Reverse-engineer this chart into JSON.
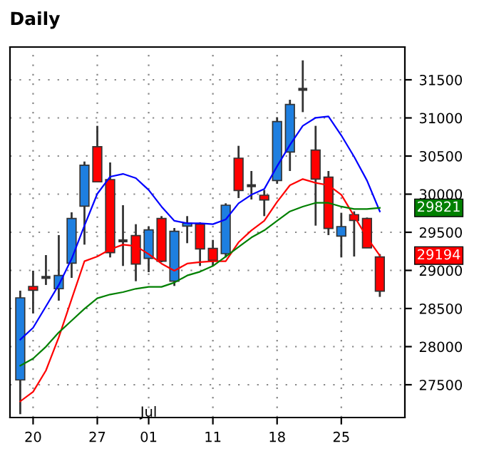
{
  "chart_data": {
    "type": "candlestick",
    "title": "Daily",
    "categories": [
      null,
      "20",
      null,
      null,
      null,
      null,
      "27",
      null,
      null,
      null,
      "01",
      null,
      null,
      null,
      null,
      "11",
      null,
      null,
      null,
      null,
      "18",
      null,
      null,
      null,
      null,
      "25",
      null,
      null,
      null
    ],
    "ohlc": [
      [
        27563,
        28734,
        27114,
        28640
      ],
      [
        28790,
        28996,
        28435,
        28740
      ],
      [
        28908,
        29201,
        28809,
        28908
      ],
      [
        28759,
        29463,
        28603,
        28933
      ],
      [
        29095,
        29762,
        28902,
        29681
      ],
      [
        29843,
        30428,
        29338,
        30379
      ],
      [
        30622,
        30896,
        30161,
        30161
      ],
      [
        30192,
        30416,
        29170,
        29232
      ],
      [
        29388,
        29855,
        29058,
        29388
      ],
      [
        29457,
        29606,
        28858,
        29083
      ],
      [
        29157,
        29575,
        28977,
        29531
      ],
      [
        29681,
        29712,
        29108,
        29120
      ],
      [
        28858,
        29556,
        28796,
        29513
      ],
      [
        29581,
        29712,
        29357,
        29619
      ],
      [
        29606,
        29631,
        29058,
        29282
      ],
      [
        29288,
        29400,
        29058,
        29133
      ],
      [
        29220,
        29880,
        29170,
        29855
      ],
      [
        30472,
        30634,
        29949,
        30048
      ],
      [
        30111,
        30304,
        29930,
        30111
      ],
      [
        29986,
        30055,
        29712,
        29924
      ],
      [
        30179,
        31008,
        30136,
        30952
      ],
      [
        30553,
        31238,
        30304,
        31176
      ],
      [
        31375,
        31755,
        31076,
        31375
      ],
      [
        30578,
        30896,
        29587,
        30198
      ],
      [
        30223,
        30304,
        29463,
        29550
      ],
      [
        29450,
        29756,
        29170,
        29575
      ],
      [
        29731,
        29774,
        29182,
        29656
      ],
      [
        29681,
        29693,
        29295,
        29295
      ],
      [
        29176,
        29214,
        28653,
        28728
      ]
    ],
    "colors": [
      "#1e7fe0",
      "#ff0000",
      "#333333",
      "#1e7fe0",
      "#1e7fe0",
      "#1e7fe0",
      "#ff0000",
      "#ff0000",
      "#333333",
      "#ff0000",
      "#1e7fe0",
      "#ff0000",
      "#1e7fe0",
      "#1e7fe0",
      "#ff0000",
      "#ff0000",
      "#1e7fe0",
      "#ff0000",
      "#333333",
      "#ff0000",
      "#1e7fe0",
      "#1e7fe0",
      "#333333",
      "#ff0000",
      "#ff0000",
      "#1e7fe0",
      "#ff0000",
      "#ff0000",
      "#ff0000"
    ],
    "series": [
      {
        "type": "line",
        "color": "#0000ff",
        "values": [
          28092,
          28248,
          28528,
          28809,
          29151,
          29587,
          30005,
          30229,
          30266,
          30210,
          30055,
          29837,
          29650,
          29619,
          29619,
          29606,
          29668,
          29880,
          29992,
          30067,
          30366,
          30646,
          30896,
          31002,
          31020,
          30771,
          30491,
          30179,
          29774
        ]
      },
      {
        "type": "line",
        "color": "#ff0000",
        "values": [
          27282,
          27407,
          27687,
          28123,
          28622,
          29120,
          29182,
          29276,
          29338,
          29319,
          29214,
          29089,
          28996,
          29089,
          29108,
          29120,
          29120,
          29369,
          29525,
          29650,
          29899,
          30117,
          30198,
          30148,
          30117,
          29992,
          29712,
          29432,
          29194
        ]
      },
      {
        "type": "line",
        "color": "#008000",
        "values": [
          27750,
          27843,
          27999,
          28186,
          28341,
          28497,
          28634,
          28684,
          28715,
          28759,
          28784,
          28784,
          28840,
          28933,
          28983,
          29058,
          29182,
          29307,
          29432,
          29525,
          29650,
          29774,
          29837,
          29886,
          29886,
          29837,
          29805,
          29805,
          29821
        ]
      }
    ],
    "ylim": [
      27070,
      31930
    ],
    "yticks": [
      27500,
      28000,
      28500,
      29000,
      29500,
      30000,
      30500,
      31000,
      31500
    ],
    "grid": true,
    "annotations": [
      "Jul",
      "29821",
      "29194"
    ]
  }
}
